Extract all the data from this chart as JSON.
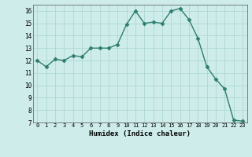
{
  "x": [
    0,
    1,
    2,
    3,
    4,
    5,
    6,
    7,
    8,
    9,
    10,
    11,
    12,
    13,
    14,
    15,
    16,
    17,
    18,
    19,
    20,
    21,
    22,
    23
  ],
  "y": [
    12.0,
    11.5,
    12.1,
    12.0,
    12.4,
    12.3,
    13.0,
    13.0,
    13.0,
    13.3,
    14.9,
    16.0,
    15.0,
    15.1,
    15.0,
    16.0,
    16.2,
    15.3,
    13.8,
    11.5,
    10.5,
    9.7,
    7.2,
    7.1
  ],
  "xlabel": "Humidex (Indice chaleur)",
  "ylim": [
    7,
    16.5
  ],
  "xlim": [
    -0.5,
    23.5
  ],
  "line_color": "#2e7d6e",
  "bg_color": "#cdecea",
  "grid_color": "#aed8d4",
  "marker": "D",
  "marker_size": 2.5,
  "line_width": 1.0,
  "xtick_fontsize": 5.0,
  "ytick_fontsize": 5.5,
  "xlabel_fontsize": 6.5
}
